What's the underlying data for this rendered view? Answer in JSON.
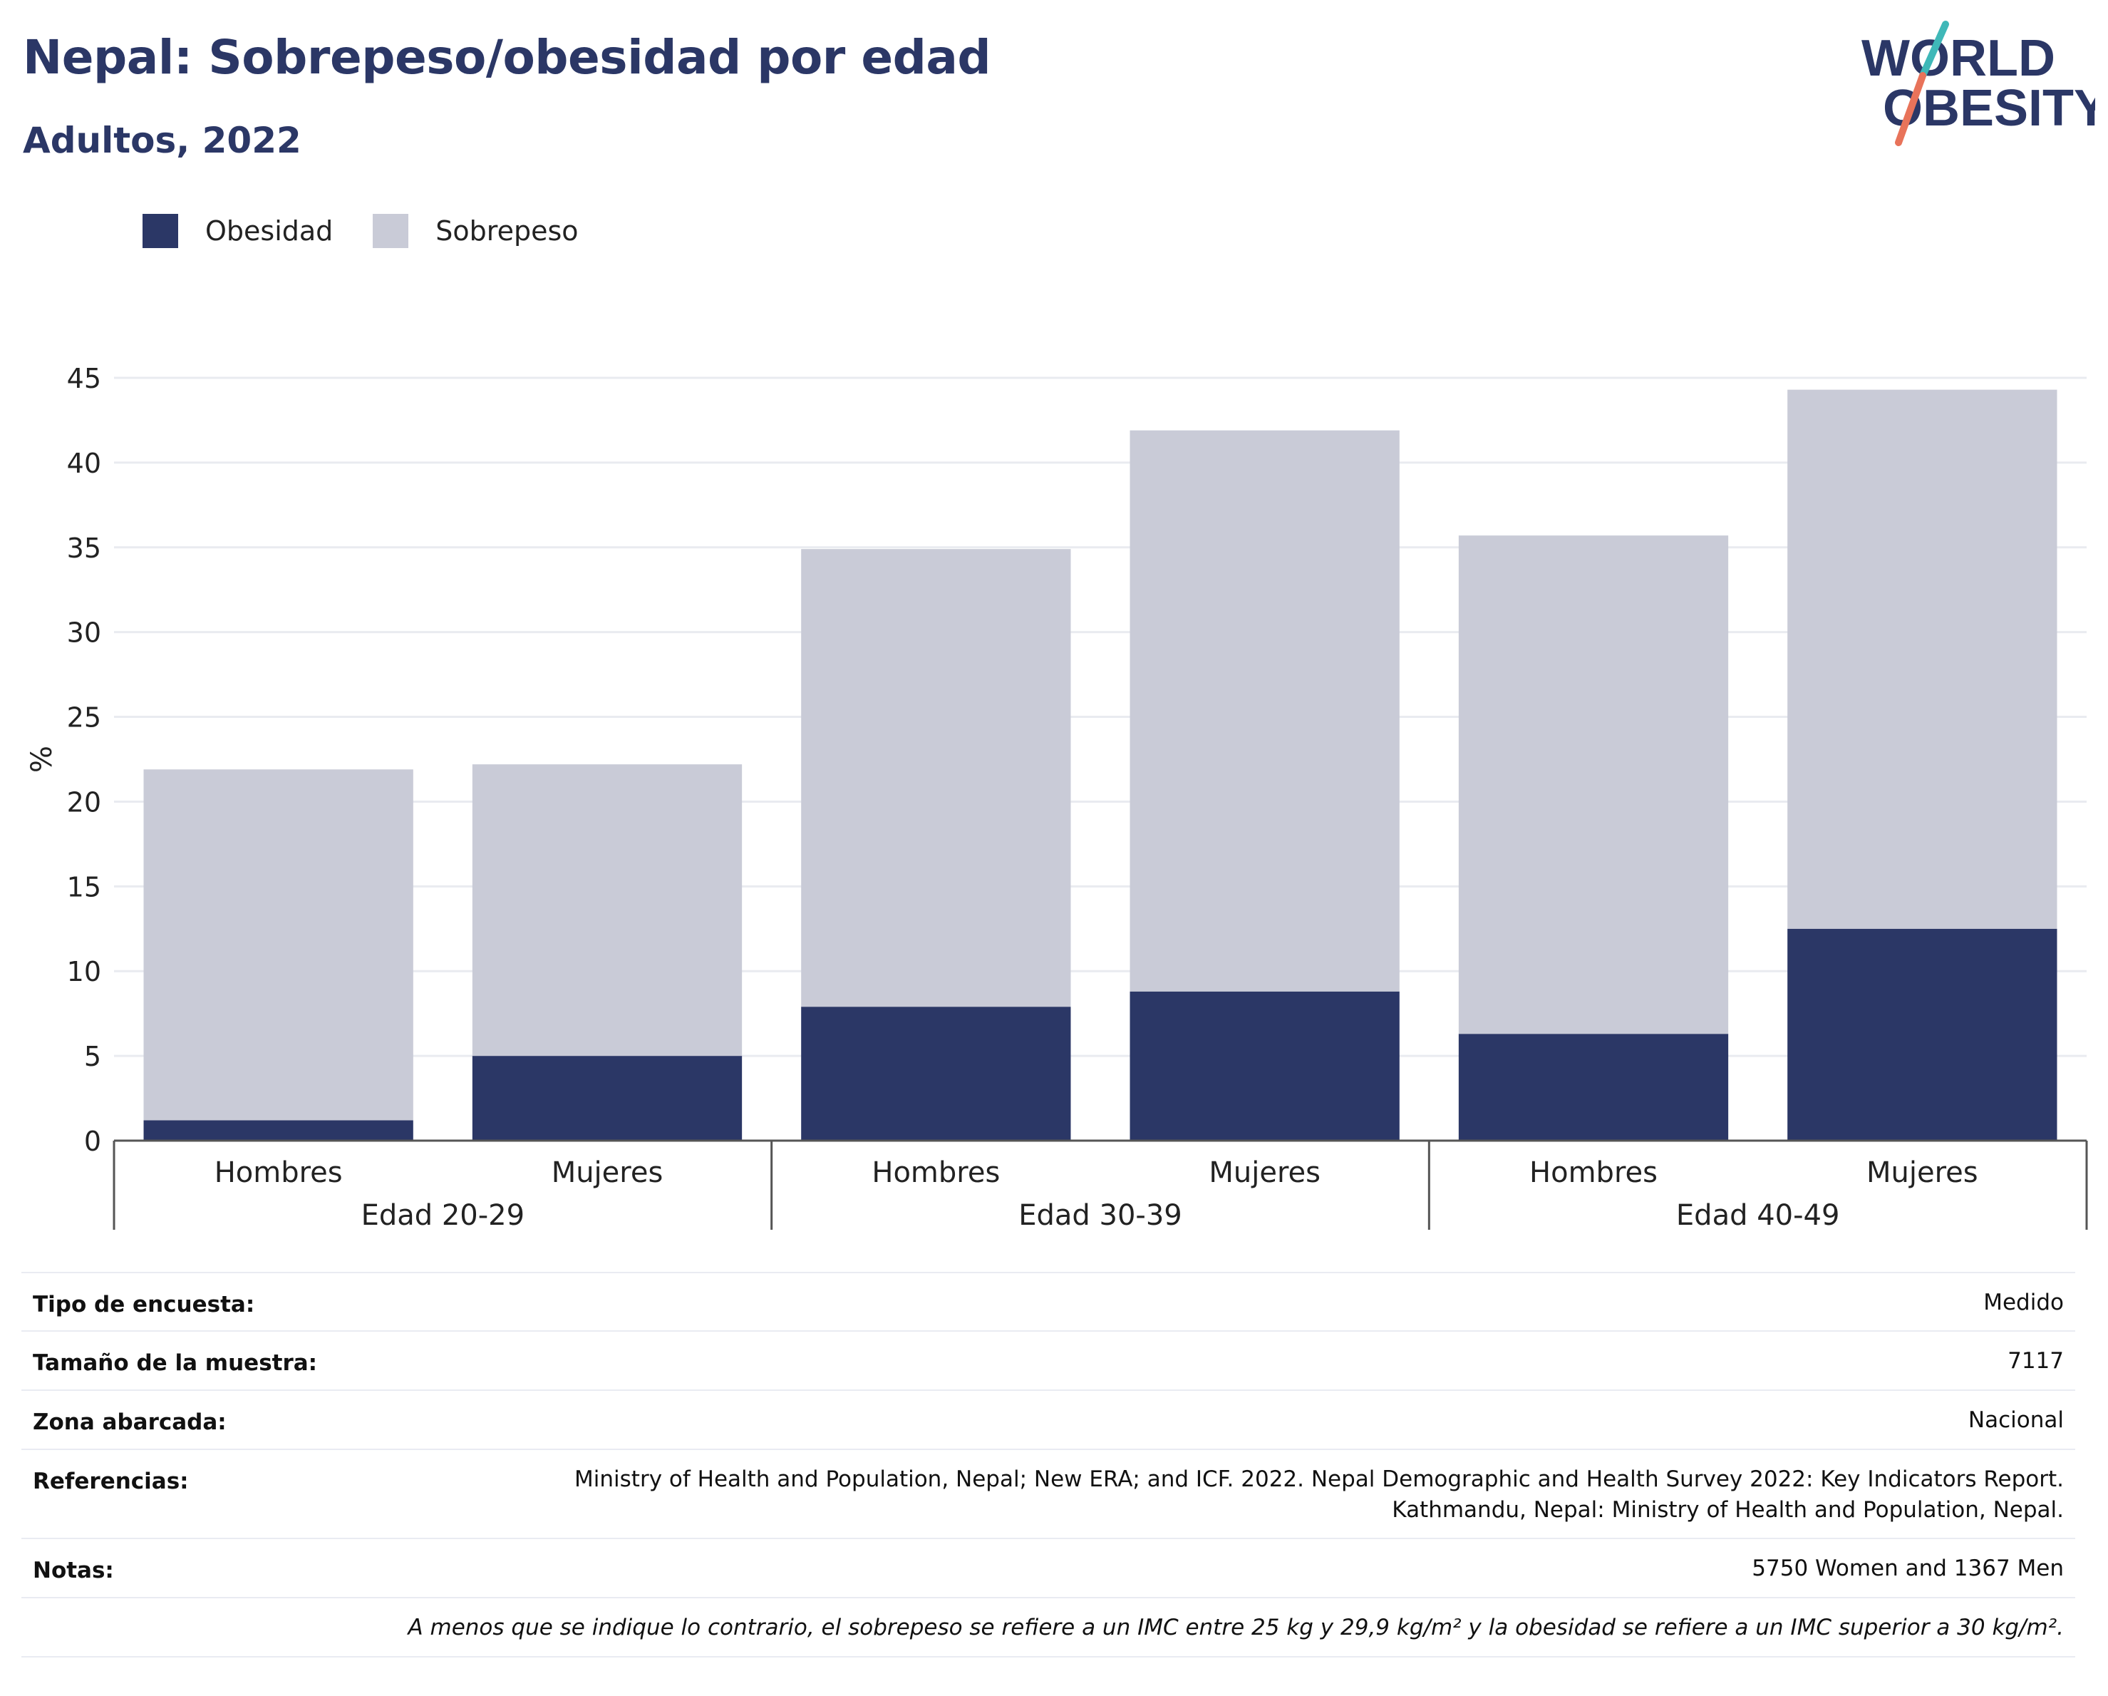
{
  "header": {
    "title": "Nepal: Sobrepeso/obesidad por edad",
    "subtitle": "Adultos, 2022"
  },
  "logo": {
    "line1": "WORLD",
    "line2": "OBESITY",
    "colors": {
      "text": "#2b3766",
      "accent_teal": "#3fb8b8",
      "accent_coral": "#e8735a"
    }
  },
  "legend": {
    "items": [
      {
        "label": "Obesidad",
        "color": "#2b3766"
      },
      {
        "label": "Sobrepeso",
        "color": "#c9cbd7"
      }
    ]
  },
  "chart_data": {
    "type": "bar",
    "stacked": true,
    "title": "",
    "xlabel": "",
    "ylabel": "%",
    "ylim": [
      0,
      45
    ],
    "yticks": [
      0,
      5,
      10,
      15,
      20,
      25,
      30,
      35,
      40,
      45
    ],
    "grid": true,
    "legend_position": "top-left",
    "groups": [
      "Edad 20-29",
      "Edad 30-39",
      "Edad 40-49"
    ],
    "categories": [
      "Hombres",
      "Mujeres",
      "Hombres",
      "Mujeres",
      "Hombres",
      "Mujeres"
    ],
    "series": [
      {
        "name": "Obesidad",
        "color": "#2b3766",
        "values": [
          1.2,
          5.0,
          7.9,
          8.8,
          6.3,
          12.5
        ]
      },
      {
        "name": "Sobrepeso",
        "color": "#c9cbd7",
        "values": [
          20.7,
          17.2,
          27.0,
          33.1,
          29.4,
          31.8
        ]
      }
    ]
  },
  "info": {
    "survey_type": {
      "label": "Tipo de encuesta:",
      "value": "Medido"
    },
    "sample_size": {
      "label": "Tamaño de la muestra:",
      "value": "7117"
    },
    "area": {
      "label": "Zona abarcada:",
      "value": "Nacional"
    },
    "references": {
      "label": "Referencias:",
      "value_line1": "Ministry of Health and Population, Nepal; New ERA; and ICF. 2022. Nepal Demographic and Health Survey 2022: Key Indicators Report.",
      "value_line2": "Kathmandu, Nepal: Ministry of Health and Population, Nepal."
    },
    "notes": {
      "label": "Notas:",
      "value": "5750 Women and 1367 Men"
    },
    "footnote": "A menos que se indique lo contrario, el sobrepeso se refiere a un IMC entre 25 kg y 29,9 kg/m² y la obesidad se refiere a un IMC superior a 30 kg/m²."
  }
}
